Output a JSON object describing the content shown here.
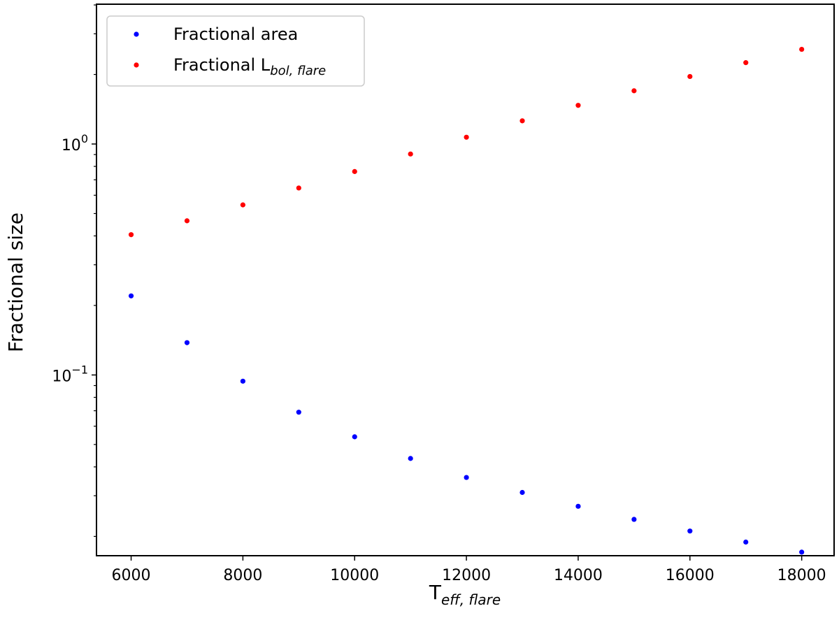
{
  "chart_data": {
    "type": "scatter",
    "xlabel": {
      "base": "T",
      "sub": "eff, flare"
    },
    "ylabel": "Fractional size",
    "x_ticks": [
      6000,
      8000,
      10000,
      12000,
      14000,
      16000,
      18000
    ],
    "y_ticks": [
      {
        "value": 1,
        "base": "10",
        "exp": "0"
      },
      {
        "value": 0.1,
        "base": "10",
        "exp": "−1"
      }
    ],
    "yscale": "log",
    "xlim": [
      5380,
      18580
    ],
    "ylim": [
      0.0165,
      4.03
    ],
    "grid": false,
    "legend_position": "top-left",
    "series": [
      {
        "name": "Fractional area",
        "color": "#0000ff",
        "x": [
          6000,
          7000,
          8000,
          9000,
          10000,
          11000,
          12000,
          13000,
          14000,
          15000,
          16000,
          17000,
          18000
        ],
        "y": [
          0.22,
          0.138,
          0.094,
          0.069,
          0.054,
          0.0435,
          0.036,
          0.031,
          0.027,
          0.0237,
          0.0211,
          0.0189,
          0.0171
        ]
      },
      {
        "name": "Fractional L",
        "name_sub": "bol, flare",
        "color": "#ff0000",
        "x": [
          6000,
          7000,
          8000,
          9000,
          10000,
          11000,
          12000,
          13000,
          14000,
          15000,
          16000,
          17000,
          18000
        ],
        "y": [
          0.405,
          0.465,
          0.545,
          0.645,
          0.76,
          0.905,
          1.07,
          1.26,
          1.47,
          1.7,
          1.96,
          2.25,
          2.57
        ]
      }
    ]
  }
}
